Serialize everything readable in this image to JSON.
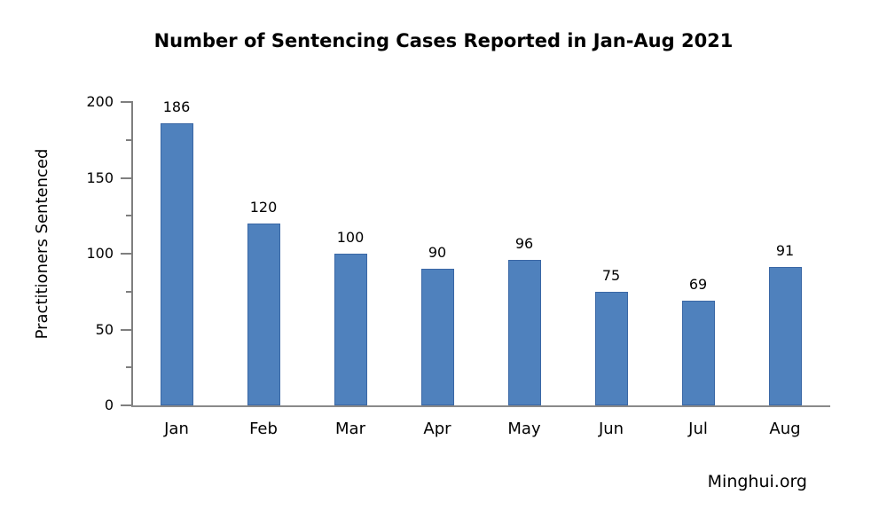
{
  "chart_data": {
    "type": "bar",
    "title": "Number of Sentencing Cases Reported in Jan-Aug 2021",
    "xlabel": "",
    "ylabel": "Practitioners Sentenced",
    "categories": [
      "Jan",
      "Feb",
      "Mar",
      "Apr",
      "May",
      "Jun",
      "Jul",
      "Aug"
    ],
    "values": [
      186,
      120,
      100,
      90,
      96,
      75,
      69,
      91
    ],
    "data_labels_shown": true,
    "yticks": [
      0,
      50,
      100,
      150,
      200
    ],
    "minor_ytick_step": 25,
    "ylim": [
      0,
      200
    ],
    "grid": false,
    "legend_position": "none",
    "bar_color": "#4f81bd",
    "bar_border_color": "#3a67a5",
    "axis_color": "#7f7f7f",
    "text_color": "#000000",
    "background_color": "#ffffff"
  },
  "footer": {
    "source": "Minghui.org"
  }
}
